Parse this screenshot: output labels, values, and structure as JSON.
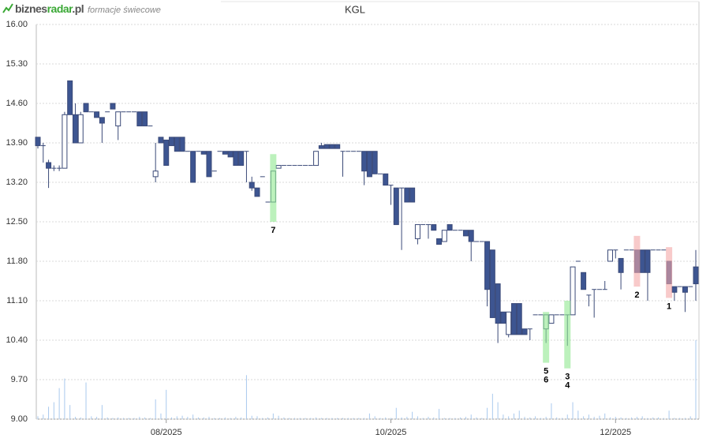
{
  "header": {
    "logo": [
      "biznes",
      "radar",
      ".pl"
    ],
    "subtitle": "formacje świecowe"
  },
  "chart_data": {
    "type": "candlestick",
    "title": "KGL",
    "categories": [
      null,
      null,
      null,
      null,
      null,
      null,
      null,
      null,
      null,
      null,
      null,
      null,
      null,
      null,
      null,
      null,
      null,
      null,
      null,
      null,
      null,
      null,
      null,
      null,
      "08/2025",
      null,
      null,
      null,
      null,
      null,
      null,
      null,
      null,
      null,
      null,
      null,
      null,
      null,
      null,
      null,
      null,
      null,
      null,
      null,
      null,
      null,
      null,
      null,
      null,
      null,
      null,
      null,
      null,
      null,
      null,
      null,
      null,
      null,
      null,
      null,
      null,
      null,
      null,
      null,
      null,
      null,
      "10/2025",
      null,
      null,
      null,
      null,
      null,
      null,
      null,
      null,
      null,
      null,
      null,
      null,
      null,
      null,
      null,
      null,
      null,
      null,
      null,
      null,
      null,
      null,
      null,
      null,
      null,
      null,
      null,
      null,
      null,
      null,
      null,
      null,
      null,
      null,
      null,
      null,
      null,
      null,
      null,
      null,
      null,
      "12/2025",
      null,
      null,
      null,
      null,
      null,
      null,
      null,
      null,
      null,
      null,
      null,
      null,
      null,
      null,
      null
    ],
    "open": [
      14.0,
      13.85,
      13.55,
      13.45,
      13.45,
      13.45,
      15.0,
      14.4,
      13.9,
      14.6,
      14.45,
      14.45,
      14.35,
      14.45,
      14.6,
      14.2,
      14.45,
      14.45,
      14.45,
      14.45,
      14.45,
      14.2,
      13.3,
      14.0,
      13.95,
      14.0,
      14.0,
      14.0,
      13.75,
      13.75,
      13.75,
      13.75,
      13.75,
      13.4,
      13.75,
      13.75,
      13.75,
      13.75,
      13.75,
      13.75,
      13.2,
      13.1,
      13.3,
      12.85,
      12.85,
      13.45,
      13.5,
      13.5,
      13.5,
      13.5,
      13.5,
      13.5,
      13.5,
      13.85,
      13.87,
      13.87,
      13.87,
      13.75,
      13.75,
      13.75,
      13.75,
      13.75,
      13.75,
      13.75,
      13.35,
      13.35,
      13.15,
      13.1,
      13.1,
      13.1,
      13.1,
      12.2,
      12.45,
      12.45,
      12.45,
      12.2,
      12.15,
      12.45,
      12.35,
      12.35,
      12.35,
      12.35,
      12.15,
      12.15,
      12.15,
      12.0,
      11.4,
      10.9,
      10.5,
      11.05,
      11.05,
      10.6,
      10.6,
      10.85,
      10.85,
      10.6,
      10.7,
      10.85,
      10.85,
      10.85,
      10.85,
      11.8,
      11.6,
      11.2,
      11.3,
      11.3,
      11.3,
      11.8,
      12.0,
      11.85,
      12.0,
      12.0,
      12.0,
      12.0,
      12.0,
      12.0,
      12.0,
      12.0,
      11.8,
      11.35,
      11.35,
      11.35,
      11.35,
      11.7
    ],
    "high": [
      14.0,
      13.9,
      13.6,
      13.5,
      13.5,
      14.45,
      15.0,
      14.6,
      14.45,
      14.6,
      14.45,
      14.45,
      14.35,
      14.45,
      14.6,
      14.45,
      14.45,
      14.45,
      14.45,
      14.45,
      14.45,
      14.2,
      13.9,
      14.0,
      13.95,
      14.0,
      14.0,
      14.0,
      13.75,
      13.75,
      13.75,
      13.75,
      13.75,
      13.4,
      13.75,
      13.75,
      13.75,
      13.75,
      13.75,
      13.75,
      13.3,
      13.1,
      13.3,
      12.85,
      13.4,
      13.5,
      13.5,
      13.5,
      13.5,
      13.5,
      13.5,
      13.5,
      13.75,
      13.9,
      13.87,
      13.87,
      13.87,
      13.75,
      13.75,
      13.75,
      13.75,
      13.75,
      13.75,
      13.75,
      13.35,
      13.35,
      13.15,
      13.1,
      13.1,
      13.1,
      13.1,
      12.45,
      12.45,
      12.45,
      12.45,
      12.2,
      12.35,
      12.45,
      12.35,
      12.35,
      12.35,
      12.35,
      12.15,
      12.15,
      12.15,
      12.0,
      11.4,
      10.9,
      10.9,
      11.05,
      11.05,
      10.6,
      10.6,
      10.85,
      10.85,
      10.85,
      10.85,
      10.85,
      10.85,
      10.85,
      11.7,
      11.8,
      11.6,
      11.2,
      11.3,
      11.3,
      11.45,
      12.0,
      12.0,
      11.85,
      12.0,
      12.0,
      12.0,
      12.0,
      12.0,
      12.0,
      12.0,
      12.0,
      11.8,
      11.35,
      11.35,
      11.35,
      11.35,
      12.0
    ],
    "low": [
      13.8,
      13.55,
      13.1,
      13.4,
      13.4,
      13.45,
      14.4,
      13.9,
      13.9,
      14.45,
      14.45,
      14.35,
      13.9,
      14.45,
      14.5,
      13.95,
      14.45,
      14.45,
      14.45,
      14.2,
      14.2,
      14.2,
      13.2,
      13.9,
      13.5,
      13.85,
      13.75,
      13.75,
      13.75,
      13.2,
      13.75,
      13.7,
      13.3,
      13.4,
      13.75,
      13.7,
      13.65,
      13.5,
      13.5,
      13.2,
      13.05,
      12.95,
      13.3,
      12.85,
      12.85,
      13.45,
      13.5,
      13.5,
      13.5,
      13.5,
      13.5,
      13.5,
      13.5,
      13.8,
      13.8,
      13.8,
      13.8,
      13.3,
      13.75,
      13.75,
      13.75,
      13.15,
      13.3,
      13.35,
      13.35,
      13.15,
      12.8,
      12.45,
      12.0,
      12.85,
      12.85,
      12.1,
      12.45,
      12.2,
      12.35,
      12.1,
      12.15,
      12.35,
      12.35,
      12.35,
      12.25,
      11.8,
      12.15,
      12.15,
      11.0,
      10.8,
      10.35,
      10.7,
      10.45,
      10.5,
      10.5,
      10.5,
      10.4,
      10.85,
      10.85,
      10.35,
      10.7,
      10.85,
      10.85,
      10.3,
      10.85,
      11.8,
      11.3,
      11.0,
      10.8,
      11.3,
      11.3,
      11.8,
      11.85,
      11.3,
      12.0,
      12.0,
      11.6,
      11.6,
      11.1,
      12.0,
      12.0,
      12.0,
      11.4,
      11.1,
      11.35,
      10.9,
      11.35,
      11.1
    ],
    "close": [
      13.85,
      13.85,
      13.45,
      13.45,
      13.45,
      14.4,
      14.4,
      13.9,
      14.4,
      14.45,
      14.45,
      14.35,
      14.25,
      14.45,
      14.5,
      14.45,
      14.45,
      14.45,
      14.45,
      14.2,
      14.2,
      14.2,
      13.4,
      13.9,
      13.5,
      13.85,
      13.75,
      13.75,
      13.75,
      13.2,
      13.75,
      13.7,
      13.3,
      13.4,
      13.75,
      13.7,
      13.65,
      13.5,
      13.5,
      13.75,
      13.1,
      12.95,
      13.3,
      12.85,
      13.4,
      13.5,
      13.5,
      13.5,
      13.5,
      13.5,
      13.5,
      13.5,
      13.75,
      13.8,
      13.8,
      13.8,
      13.8,
      13.75,
      13.75,
      13.75,
      13.75,
      13.4,
      13.3,
      13.35,
      13.35,
      13.15,
      13.15,
      12.45,
      13.1,
      12.85,
      12.85,
      12.45,
      12.45,
      12.45,
      12.35,
      12.1,
      12.35,
      12.35,
      12.35,
      12.35,
      12.25,
      12.15,
      12.15,
      12.15,
      11.3,
      10.8,
      10.7,
      10.7,
      10.9,
      10.5,
      10.5,
      10.5,
      10.6,
      10.85,
      10.85,
      10.85,
      10.85,
      10.85,
      10.85,
      10.85,
      11.7,
      11.8,
      11.3,
      11.2,
      11.3,
      11.3,
      11.3,
      12.0,
      12.0,
      11.6,
      12.0,
      12.0,
      11.6,
      11.6,
      11.6,
      12.0,
      12.0,
      12.0,
      11.4,
      11.25,
      11.35,
      11.25,
      11.35,
      11.4
    ],
    "volume": [
      9.05,
      9.08,
      9.22,
      9.3,
      9.55,
      9.72,
      9.25,
      9.04,
      9.03,
      9.65,
      9.05,
      9.04,
      9.25,
      9.03,
      9.02,
      9.03,
      9.02,
      9.02,
      9.02,
      9.04,
      9.03,
      9.02,
      9.35,
      9.1,
      9.52,
      9.03,
      9.05,
      9.06,
      9.04,
      9.08,
      9.03,
      9.03,
      9.04,
      9.02,
      9.02,
      9.03,
      9.02,
      9.04,
      9.03,
      9.78,
      9.06,
      9.05,
      9.02,
      9.03,
      9.1,
      9.06,
      9.03,
      9.02,
      9.02,
      9.02,
      9.02,
      9.02,
      9.03,
      9.02,
      9.02,
      9.02,
      9.02,
      9.02,
      9.02,
      9.02,
      9.02,
      9.02,
      9.1,
      9.05,
      9.02,
      9.03,
      9.02,
      9.2,
      9.03,
      9.04,
      9.13,
      9.05,
      9.02,
      9.04,
      9.03,
      9.18,
      9.02,
      9.02,
      9.02,
      9.03,
      9.04,
      9.08,
      9.03,
      9.02,
      9.2,
      9.45,
      9.3,
      9.08,
      9.05,
      9.1,
      9.15,
      9.04,
      9.03,
      9.05,
      9.02,
      9.04,
      9.28,
      9.03,
      9.02,
      9.08,
      9.3,
      9.15,
      9.05,
      9.08,
      9.04,
      9.06,
      9.1,
      9.03,
      9.04,
      9.03,
      9.02,
      9.03,
      9.04,
      9.05,
      9.02,
      9.03,
      9.03,
      9.02,
      9.15,
      9.02,
      9.02,
      9.02,
      9.05,
      10.4
    ],
    "highlights": [
      null,
      null,
      null,
      null,
      null,
      null,
      null,
      null,
      null,
      null,
      null,
      null,
      null,
      null,
      null,
      null,
      null,
      null,
      null,
      null,
      null,
      null,
      null,
      null,
      null,
      null,
      null,
      null,
      null,
      null,
      null,
      null,
      null,
      null,
      null,
      null,
      null,
      null,
      null,
      null,
      null,
      null,
      null,
      null,
      {
        "labels": [
          "7"
        ],
        "color": "#8fe88f",
        "range": [
          12.5,
          13.7
        ]
      },
      null,
      null,
      null,
      null,
      null,
      null,
      null,
      null,
      null,
      null,
      null,
      null,
      null,
      null,
      null,
      null,
      null,
      null,
      null,
      null,
      null,
      null,
      null,
      null,
      null,
      null,
      null,
      null,
      null,
      null,
      null,
      null,
      null,
      null,
      null,
      null,
      null,
      null,
      null,
      null,
      null,
      null,
      null,
      null,
      null,
      null,
      null,
      null,
      null,
      null,
      {
        "labels": [
          "5",
          "6"
        ],
        "color": "#8fe88f",
        "range": [
          10.0,
          10.9
        ]
      },
      null,
      null,
      null,
      {
        "labels": [
          "3",
          "4"
        ],
        "color": "#8fe88f",
        "range": [
          9.9,
          11.1
        ]
      },
      null,
      null,
      null,
      null,
      null,
      null,
      null,
      null,
      null,
      null,
      null,
      null,
      {
        "labels": [
          "2"
        ],
        "color": "#f4a6a6",
        "range": [
          11.35,
          12.25
        ]
      },
      null,
      null,
      null,
      null,
      null,
      {
        "labels": [
          "1"
        ],
        "color": "#f4a6a6",
        "range": [
          11.15,
          12.05
        ]
      },
      null,
      null,
      null,
      null,
      null
    ],
    "up_color": "#ffffff",
    "down_color": "#3d5591",
    "outline_color": "#3b4a78",
    "volume_color": "#a9c9ee",
    "ylim": [
      9.0,
      16.0
    ],
    "yticks": [
      {
        "value": 9.0,
        "label": "9.00"
      },
      {
        "value": 9.7,
        "label": "9.70"
      },
      {
        "value": 10.4,
        "label": "10.40"
      },
      {
        "value": 11.1,
        "label": "11.10"
      },
      {
        "value": 11.8,
        "label": "11.80"
      },
      {
        "value": 12.5,
        "label": "12.50"
      },
      {
        "value": 13.2,
        "label": "13.20"
      },
      {
        "value": 13.9,
        "label": "13.90"
      },
      {
        "value": 14.6,
        "label": "14.60"
      },
      {
        "value": 15.3,
        "label": "15.30"
      },
      {
        "value": 16.0,
        "label": "16.00"
      }
    ],
    "grid": true
  }
}
